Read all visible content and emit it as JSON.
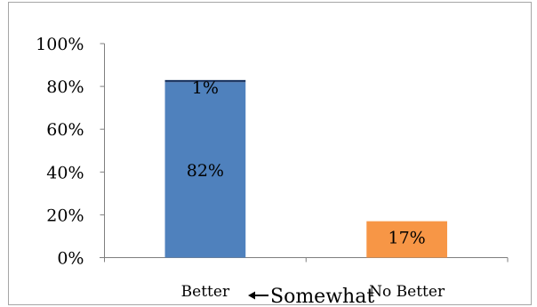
{
  "chart_data": {
    "type": "bar",
    "stacked": true,
    "categories": [
      "Better",
      "No Better"
    ],
    "series": [
      {
        "values": [
          82,
          17
        ],
        "data_labels": [
          "82%",
          "17%"
        ],
        "colors": [
          "#4f81bd",
          "#f79646"
        ]
      },
      {
        "values": [
          1,
          0
        ],
        "data_labels": [
          "1%",
          ""
        ],
        "colors": [
          "#1f3864",
          "#1f3864"
        ]
      }
    ],
    "ylim": [
      0,
      100
    ],
    "yticks": [
      0,
      20,
      40,
      60,
      80,
      100
    ],
    "ytick_labels": [
      "0%",
      "20%",
      "40%",
      "60%",
      "80%",
      "100%"
    ],
    "grid": false,
    "legend": "none",
    "title": "",
    "xlabel": "",
    "ylabel": ""
  },
  "annotation": {
    "text": "Somewhat",
    "arrow_icon": "left-arrow-icon"
  }
}
